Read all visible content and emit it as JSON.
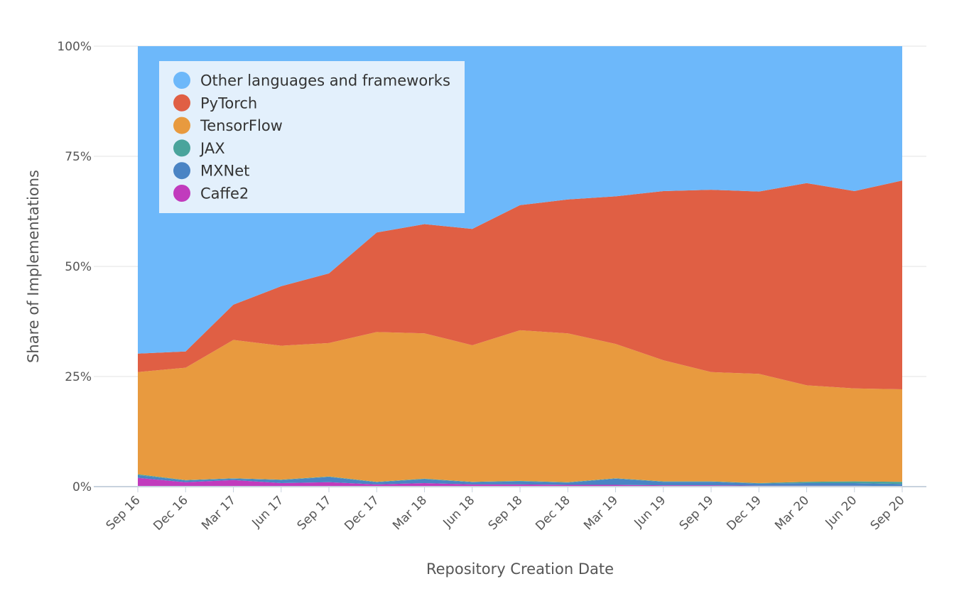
{
  "chart_data": {
    "type": "area",
    "stacking": "percent",
    "xlabel": "Repository Creation Date",
    "ylabel": "Share of Implementations",
    "ylim": [
      0,
      100
    ],
    "yticks": [
      "0%",
      "25%",
      "50%",
      "75%",
      "100%"
    ],
    "categories": [
      "Sep 16",
      "Dec 16",
      "Mar 17",
      "Jun 17",
      "Sep 17",
      "Dec 17",
      "Mar 18",
      "Jun 18",
      "Sep 18",
      "Dec 18",
      "Mar 19",
      "Jun 19",
      "Sep 19",
      "Dec 19",
      "Mar 20",
      "Jun 20",
      "Sep 20"
    ],
    "grid": true,
    "legend_position": "top-left",
    "series": [
      {
        "name": "Caffe2",
        "color": "#c13bbd",
        "values": [
          2.0,
          1.0,
          1.5,
          0.8,
          1.0,
          0.5,
          0.8,
          0.5,
          0.5,
          0.4,
          0.4,
          0.3,
          0.3,
          0.2,
          0.2,
          0.2,
          0.1
        ]
      },
      {
        "name": "MXNet",
        "color": "#4a84c4",
        "values": [
          0.6,
          0.4,
          0.3,
          0.7,
          1.2,
          0.5,
          0.9,
          0.5,
          0.7,
          0.5,
          1.4,
          0.8,
          0.8,
          0.5,
          0.6,
          0.6,
          0.5
        ]
      },
      {
        "name": "JAX",
        "color": "#4aa49c",
        "values": [
          0.2,
          0.1,
          0.1,
          0.1,
          0.1,
          0.1,
          0.1,
          0.1,
          0.1,
          0.1,
          0.1,
          0.1,
          0.1,
          0.1,
          0.3,
          0.4,
          0.5
        ]
      },
      {
        "name": "TensorFlow",
        "color": "#e89a3f",
        "values": [
          23.2,
          25.5,
          31.4,
          30.4,
          30.3,
          34.0,
          33.0,
          31.0,
          34.2,
          33.8,
          30.5,
          27.5,
          24.8,
          24.8,
          21.9,
          21.1,
          21.0
        ]
      },
      {
        "name": "PyTorch",
        "color": "#e05f44",
        "values": [
          4.2,
          3.7,
          8.0,
          13.5,
          15.8,
          22.6,
          24.8,
          26.4,
          28.4,
          30.4,
          33.5,
          38.4,
          41.4,
          41.4,
          45.9,
          44.8,
          47.4
        ]
      },
      {
        "name": "Other languages and frameworks",
        "color": "#6db8fa",
        "values": [
          69.8,
          69.3,
          58.7,
          54.5,
          51.6,
          42.3,
          40.4,
          41.5,
          36.1,
          34.8,
          34.1,
          32.9,
          32.6,
          33.0,
          31.1,
          32.9,
          30.5
        ]
      }
    ],
    "legend_order": [
      "Other languages and frameworks",
      "PyTorch",
      "TensorFlow",
      "JAX",
      "MXNet",
      "Caffe2"
    ]
  }
}
